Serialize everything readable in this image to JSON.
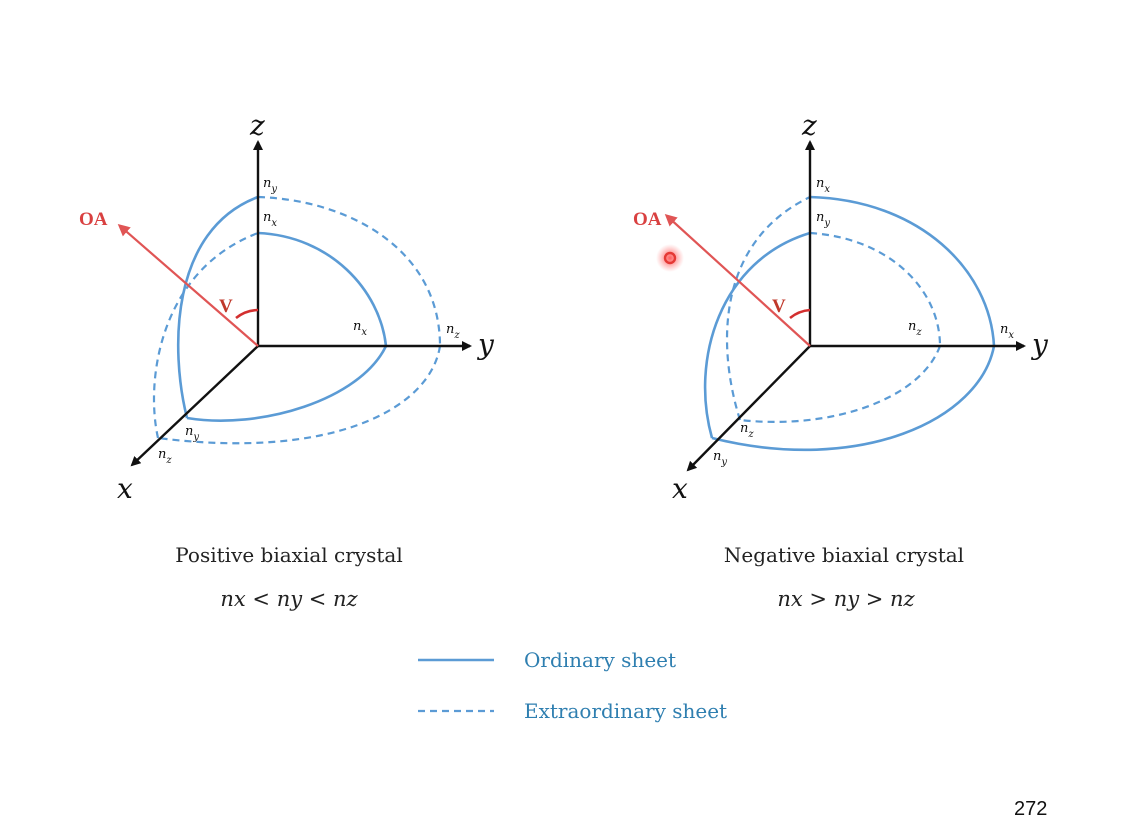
{
  "left": {
    "axes": {
      "z": "z",
      "y": "y",
      "x": "x"
    },
    "oa_label": "OA",
    "angle_label": "V",
    "z_labels": [
      "n",
      "y",
      "n",
      "x"
    ],
    "y_labels": [
      "n",
      "x",
      "n",
      "z"
    ],
    "x_labels": [
      "n",
      "y",
      "n",
      "z"
    ],
    "caption": "Positive biaxial crystal",
    "relation": "nx < ny < nz"
  },
  "right": {
    "axes": {
      "z": "z",
      "y": "y",
      "x": "x"
    },
    "oa_label": "OA",
    "angle_label": "V",
    "z_labels": [
      "n",
      "x",
      "n",
      "y"
    ],
    "y_labels": [
      "n",
      "z",
      "n",
      "x"
    ],
    "x_labels": [
      "n",
      "z",
      "n",
      "y"
    ],
    "caption": "Negative biaxial crystal",
    "relation": "nx > ny > nz"
  },
  "legend": {
    "solid": "Ordinary sheet",
    "dashed": "Extraordinary sheet"
  },
  "page_number": "272",
  "colors": {
    "sheet": "#5b9bd5",
    "axis": "#111111",
    "oa": "#e05555",
    "pointer": "#e53935"
  }
}
